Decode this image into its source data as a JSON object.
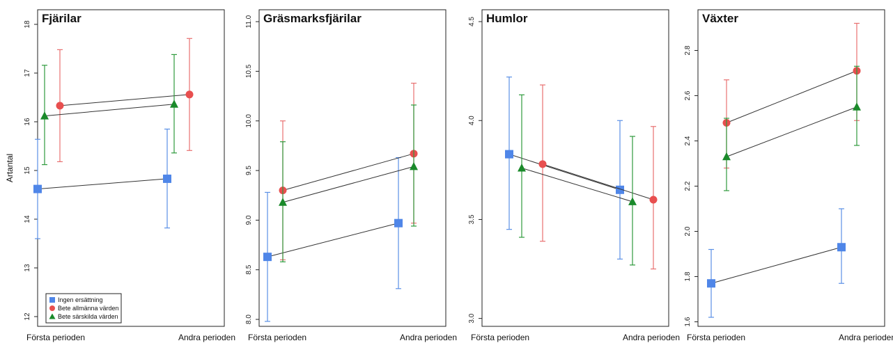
{
  "chart_data": [
    {
      "type": "line",
      "title": "Fjärilar",
      "ylabel": "Artantal",
      "categories": [
        "Första perioden",
        "Andra perioden"
      ],
      "ylim": [
        11.8,
        18.3
      ],
      "yticks": [
        12,
        13,
        14,
        15,
        16,
        17,
        18
      ],
      "legend_position": "bottom-left",
      "series": [
        {
          "name": "Ingen ersättning",
          "values": [
            14.62,
            14.83
          ],
          "lower": [
            13.6,
            13.82
          ],
          "upper": [
            15.64,
            15.85
          ]
        },
        {
          "name": "Bete allmänna värden",
          "values": [
            16.33,
            16.56
          ],
          "lower": [
            15.18,
            15.41
          ],
          "upper": [
            17.48,
            17.71
          ]
        },
        {
          "name": "Bete särskilda värden",
          "values": [
            16.12,
            16.36
          ],
          "lower": [
            15.12,
            15.36
          ],
          "upper": [
            17.16,
            17.38
          ]
        }
      ]
    },
    {
      "type": "line",
      "title": "Gräsmarksfjärilar",
      "ylabel": "",
      "categories": [
        "Första perioden",
        "Andra perioden"
      ],
      "ylim": [
        7.93,
        11.12
      ],
      "yticks": [
        8.0,
        8.5,
        9.0,
        9.5,
        10.0,
        10.5,
        11.0
      ],
      "series": [
        {
          "name": "Ingen ersättning",
          "values": [
            8.63,
            8.97
          ],
          "lower": [
            7.98,
            8.31
          ],
          "upper": [
            9.28,
            9.63
          ]
        },
        {
          "name": "Bete allmänna värden",
          "values": [
            9.3,
            9.67
          ],
          "lower": [
            8.6,
            8.97
          ],
          "upper": [
            10.0,
            10.38
          ]
        },
        {
          "name": "Bete särskilda värden",
          "values": [
            9.18,
            9.54
          ],
          "lower": [
            8.58,
            8.94
          ],
          "upper": [
            9.79,
            10.16
          ]
        }
      ]
    },
    {
      "type": "line",
      "title": "Humlor",
      "ylabel": "",
      "categories": [
        "Första perioden",
        "Andra perioden"
      ],
      "ylim": [
        2.96,
        4.56
      ],
      "yticks": [
        3.0,
        3.5,
        4.0,
        4.5
      ],
      "series": [
        {
          "name": "Ingen ersättning",
          "values": [
            3.83,
            3.65
          ],
          "lower": [
            3.45,
            3.3
          ],
          "upper": [
            4.22,
            4.0
          ]
        },
        {
          "name": "Bete allmänna värden",
          "values": [
            3.78,
            3.6
          ],
          "lower": [
            3.39,
            3.25
          ],
          "upper": [
            4.18,
            3.97
          ]
        },
        {
          "name": "Bete särskilda värden",
          "values": [
            3.76,
            3.59
          ],
          "lower": [
            3.41,
            3.27
          ],
          "upper": [
            4.13,
            3.92
          ]
        }
      ]
    },
    {
      "type": "line",
      "title": "Växter",
      "ylabel": "",
      "categories": [
        "Första perioden",
        "Andra perioden"
      ],
      "ylim": [
        1.58,
        2.98
      ],
      "yticks": [
        1.6,
        1.8,
        2.0,
        2.2,
        2.4,
        2.6,
        2.8
      ],
      "series": [
        {
          "name": "Ingen ersättning",
          "values": [
            1.77,
            1.93
          ],
          "lower": [
            1.62,
            1.77
          ],
          "upper": [
            1.92,
            2.1
          ]
        },
        {
          "name": "Bete allmänna värden",
          "values": [
            2.48,
            2.71
          ],
          "lower": [
            2.28,
            2.49
          ],
          "upper": [
            2.67,
            2.92
          ]
        },
        {
          "name": "Bete särskilda värden",
          "values": [
            2.33,
            2.55
          ],
          "lower": [
            2.18,
            2.38
          ],
          "upper": [
            2.5,
            2.73
          ]
        }
      ]
    }
  ],
  "legend": {
    "items": [
      {
        "label": "Ingen ersättning",
        "marker": "square",
        "color": "#4f86e8"
      },
      {
        "label": "Bete allmänna värden",
        "marker": "circle",
        "color": "#e84f4f"
      },
      {
        "label": "Bete särskilda värden",
        "marker": "triangle",
        "color": "#1a8a2a"
      }
    ]
  },
  "series_style": [
    {
      "marker": "square",
      "color": "#4f86e8",
      "error_color": "#5b90e6"
    },
    {
      "marker": "circle",
      "color": "#e84f4f",
      "error_color": "#e87070"
    },
    {
      "marker": "triangle",
      "color": "#1a8a2a",
      "error_color": "#2e9a3c"
    }
  ]
}
